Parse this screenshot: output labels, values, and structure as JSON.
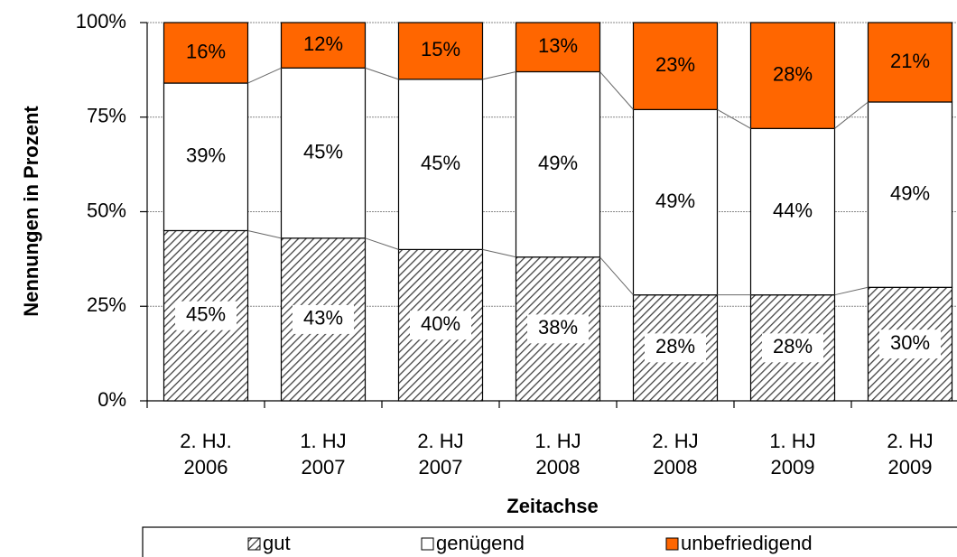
{
  "chart_data": {
    "type": "stacked_bar",
    "categories": [
      "2. HJ.\n2006",
      "1. HJ\n2007",
      "2. HJ\n2007",
      "1. HJ\n2008",
      "2. HJ\n2008",
      "1. HJ\n2009",
      "2. HJ\n2009"
    ],
    "series": [
      {
        "name": "gut",
        "color": "#444444",
        "hatch": true,
        "values": [
          45,
          43,
          40,
          38,
          28,
          28,
          30
        ],
        "value_labels": [
          "45%",
          "43%",
          "40%",
          "38%",
          "28%",
          "28%",
          "30%"
        ]
      },
      {
        "name": "genügend",
        "color": "#ffffff",
        "values": [
          39,
          45,
          45,
          49,
          49,
          44,
          49
        ],
        "value_labels": [
          "39%",
          "45%",
          "45%",
          "49%",
          "49%",
          "44%",
          "49%"
        ]
      },
      {
        "name": "unbefriedigend",
        "color": "#ff6600",
        "values": [
          16,
          12,
          15,
          13,
          23,
          28,
          21
        ],
        "value_labels": [
          "16%",
          "12%",
          "15%",
          "13%",
          "23%",
          "28%",
          "21%"
        ]
      }
    ],
    "ylabel": "Nennungen in Prozent",
    "xlabel": "Zeitachse",
    "ylim": [
      0,
      100
    ],
    "yticks": [
      {
        "value": 0,
        "label": "0%"
      },
      {
        "value": 25,
        "label": "25%"
      },
      {
        "value": 50,
        "label": "50%"
      },
      {
        "value": 75,
        "label": "75%"
      },
      {
        "value": 100,
        "label": "100%"
      }
    ],
    "grid": true,
    "legend": "bottom"
  }
}
